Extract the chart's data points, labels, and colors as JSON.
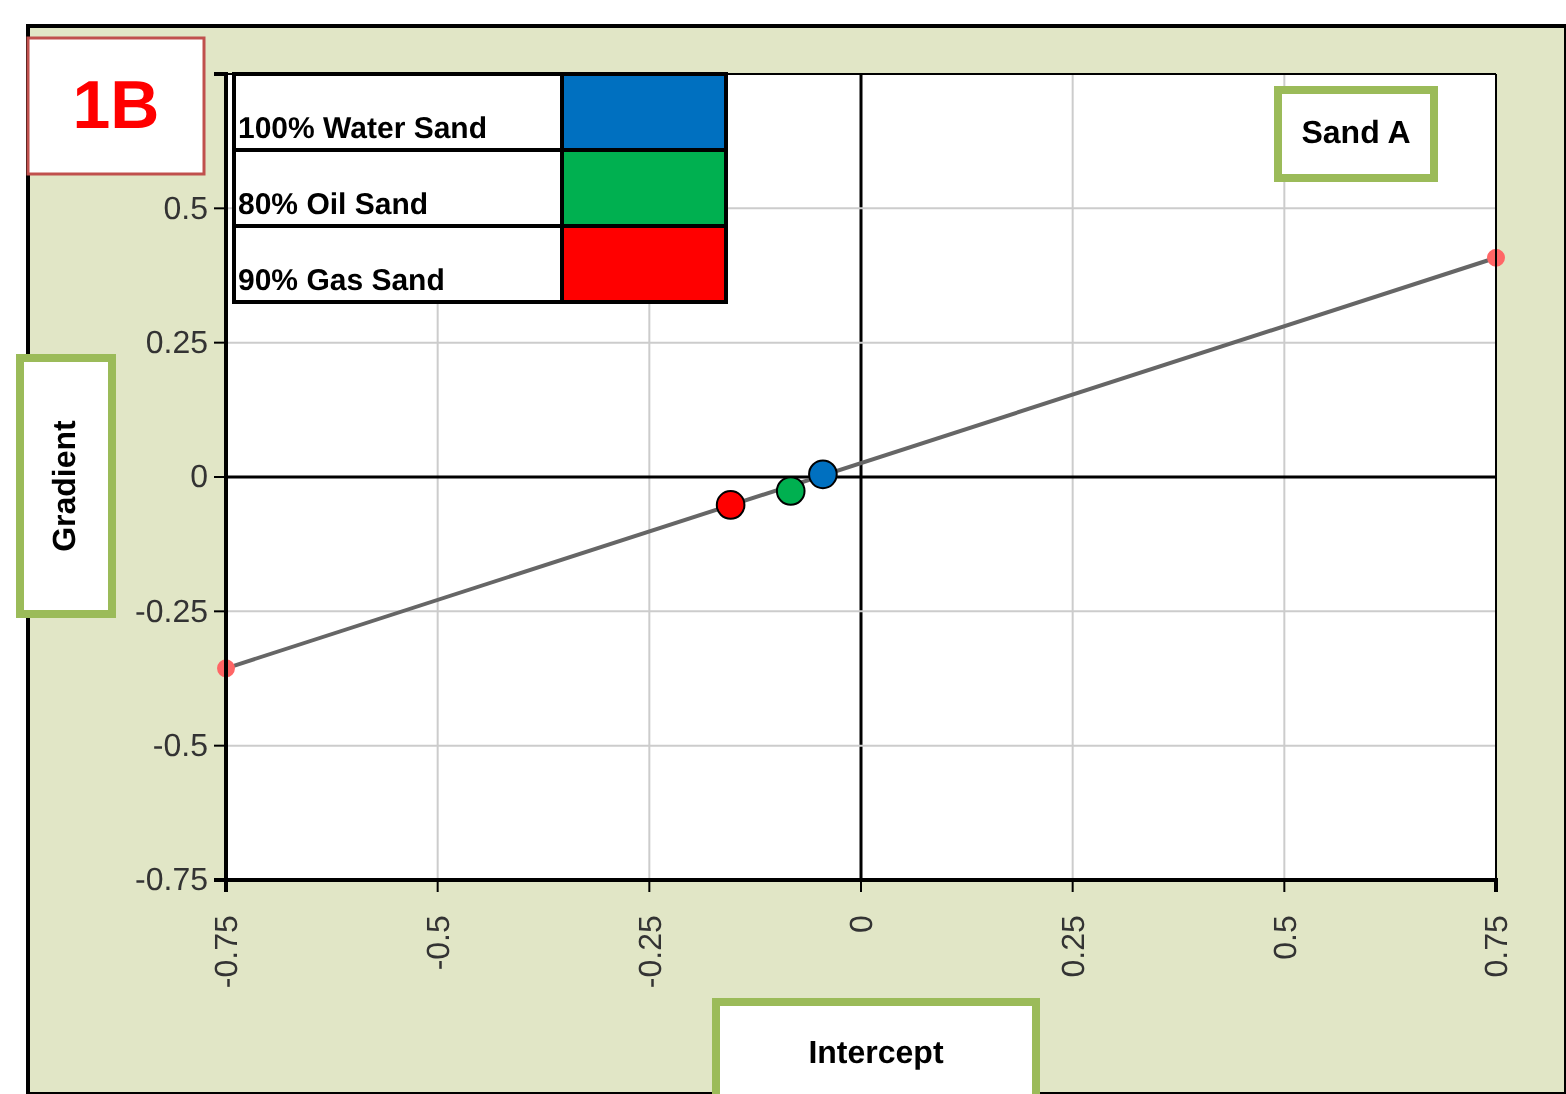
{
  "chart_data": {
    "type": "scatter",
    "xlabel": "Intercept",
    "ylabel": "Gradient",
    "xlim": [
      -0.75,
      0.75
    ],
    "ylim": [
      -0.75,
      0.75
    ],
    "xticks": [
      -0.75,
      -0.5,
      -0.25,
      0,
      0.25,
      0.5,
      0.75
    ],
    "yticks": [
      -0.75,
      -0.5,
      -0.25,
      0,
      0.25,
      0.5,
      {
        "value": 0.75,
        "label": null
      }
    ],
    "grid": true,
    "legend": "top left",
    "marker": "circle",
    "annotations": [
      "1B",
      "Sand A"
    ],
    "series": [
      {
        "type": "line",
        "color": "#666666",
        "x": [
          -0.75,
          0.75
        ],
        "values": [
          -0.356,
          0.408
        ],
        "marker": "none",
        "line_style": "solid"
      },
      {
        "type": "scatter",
        "color": "#ff6666",
        "x": [
          -0.75,
          0.75
        ],
        "values": [
          -0.356,
          0.408
        ]
      },
      {
        "name": "100% Water Sand",
        "color": "#0070c0",
        "x": [
          -0.045
        ],
        "values": [
          0.005
        ]
      },
      {
        "name": "80% Oil Sand",
        "color": "#00b050",
        "x": [
          -0.083
        ],
        "values": [
          -0.026
        ]
      },
      {
        "name": "90% Gas Sand",
        "color": "#ff0000",
        "x": [
          -0.154
        ],
        "values": [
          -0.052
        ]
      }
    ]
  }
}
